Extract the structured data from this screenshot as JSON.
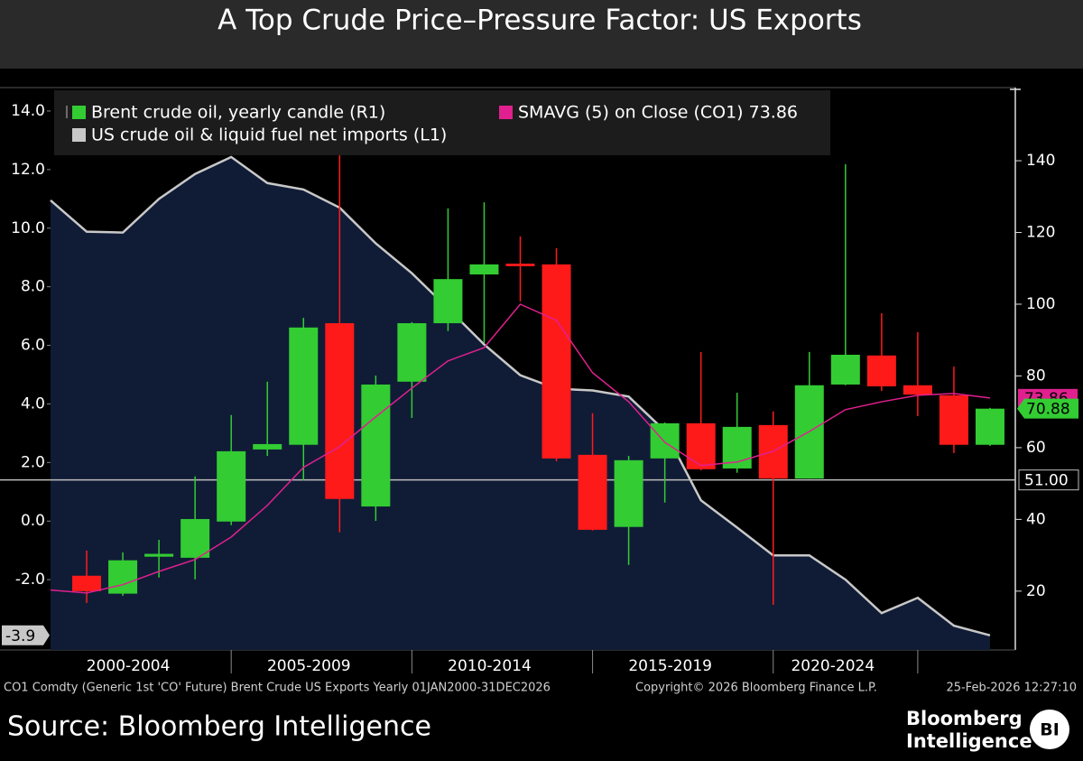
{
  "chart_data": {
    "type": "candlestick",
    "title": "A Top Crude Price–Pressure Factor: US Exports",
    "xlim": [
      2000,
      2026.7
    ],
    "xticks": [
      2005,
      2010,
      2015,
      2020,
      2024
    ],
    "period_labels": [
      "2000-2004",
      "2005-2009",
      "2010-2014",
      "2015-2019",
      "2020-2024"
    ],
    "ylim": [
      -4.4,
      14.8
    ],
    "yticks": [
      {
        "value": -2,
        "label": "-2.0"
      },
      {
        "value": 0,
        "label": "0.0"
      },
      {
        "value": 2,
        "label": "2.0"
      },
      {
        "value": 4,
        "label": "4.0"
      },
      {
        "value": 6,
        "label": "6.0"
      },
      {
        "value": 8,
        "label": "8.0"
      },
      {
        "value": 10,
        "label": "10.0"
      },
      {
        "value": 12,
        "label": "12.0"
      },
      {
        "value": 14,
        "label": "14.0"
      }
    ],
    "y2lim": [
      3.6,
      160.4
    ],
    "y2ticks": [
      20,
      40,
      60,
      80,
      100,
      120,
      140
    ],
    "hline": {
      "value": 51,
      "label": "51.00",
      "axis": "y2",
      "color": "#bdbdbd"
    },
    "grid": false,
    "series": [
      {
        "name": "Brent crude oil, yearly candle (R1)",
        "type": "candlestick",
        "axis": "y2",
        "up_color": "#33cc33",
        "down_color": "#ff1a1a",
        "x": [
          2001,
          2002,
          2003,
          2004,
          2005,
          2006,
          2007,
          2008,
          2009,
          2010,
          2011,
          2012,
          2013,
          2014,
          2015,
          2016,
          2017,
          2018,
          2019,
          2020,
          2021,
          2022,
          2023,
          2024,
          2025,
          2026
        ],
        "open": [
          24.3,
          19.3,
          29.6,
          29.3,
          39.4,
          59.5,
          60.8,
          94.7,
          43.6,
          78.4,
          94.7,
          108.3,
          111.3,
          111.1,
          58.0,
          37.9,
          57.0,
          66.8,
          54.2,
          66.3,
          51.4,
          77.6,
          85.7,
          77.4,
          74.6,
          60.8
        ],
        "high": [
          31.3,
          30.8,
          34.3,
          52.0,
          69.1,
          78.4,
          96.2,
          147.5,
          80.1,
          95.0,
          126.7,
          128.4,
          118.9,
          115.6,
          69.6,
          57.7,
          67.0,
          86.7,
          75.3,
          70.1,
          86.7,
          139.0,
          97.5,
          92.2,
          82.6,
          71.1
        ],
        "low": [
          16.7,
          18.7,
          23.8,
          23.3,
          38.4,
          57.7,
          50.9,
          36.4,
          39.6,
          68.3,
          92.5,
          89.2,
          100.8,
          56.2,
          36.9,
          27.3,
          44.7,
          53.7,
          53.0,
          16.2,
          51.4,
          77.4,
          75.8,
          68.8,
          58.5,
          60.5
        ],
        "close": [
          20.0,
          28.6,
          30.4,
          40.1,
          59.0,
          61.0,
          93.5,
          45.7,
          77.6,
          94.7,
          107.0,
          111.1,
          110.6,
          57.0,
          37.1,
          56.5,
          66.8,
          54.0,
          65.8,
          51.4,
          77.4,
          85.9,
          77.1,
          74.8,
          60.8,
          70.88
        ]
      },
      {
        "name": "SMAVG (5)  on Close (CO1) 73.86",
        "type": "line",
        "axis": "y2",
        "color": "#e0208f",
        "x": [
          2000,
          2001,
          2002,
          2003,
          2004,
          2005,
          2006,
          2007,
          2008,
          2009,
          2010,
          2011,
          2012,
          2013,
          2014,
          2015,
          2016,
          2017,
          2018,
          2019,
          2020,
          2021,
          2022,
          2023,
          2024,
          2025,
          2026
        ],
        "values": [
          20.3,
          19.5,
          21.8,
          25.5,
          28.8,
          35.1,
          43.9,
          54.5,
          60.3,
          68.6,
          76.6,
          84.2,
          87.9,
          100.0,
          95.5,
          80.9,
          72.8,
          61.5,
          55.0,
          56.0,
          59.0,
          64.5,
          70.6,
          72.8,
          74.6,
          75.1,
          73.86
        ]
      },
      {
        "name": "US crude oil & liquid fuel net imports (L1)",
        "type": "area",
        "axis": "y",
        "color": "#c8c8c8",
        "fill": "#101c36",
        "x": [
          2000,
          2001,
          2002,
          2003,
          2004,
          2005,
          2006,
          2007,
          2008,
          2009,
          2010,
          2011,
          2012,
          2013,
          2014,
          2015,
          2016,
          2017,
          2018,
          2019,
          2020,
          2021,
          2022,
          2023,
          2024,
          2025,
          2026
        ],
        "values": [
          10.95,
          9.88,
          9.85,
          11.0,
          11.85,
          12.43,
          11.54,
          11.32,
          10.7,
          9.48,
          8.46,
          7.26,
          6.03,
          4.98,
          4.52,
          4.46,
          4.25,
          3.08,
          0.71,
          -0.22,
          -1.17,
          -1.17,
          -2.0,
          -3.14,
          -2.62,
          -3.57,
          -3.9
        ]
      }
    ]
  },
  "footer": {
    "description": "CO1 Comdty (Generic 1st 'CO' Future) Brent Crude US Exports Yearly 01JAN2000-31DEC2026",
    "copyright": "Copyright© 2026 Bloomberg Finance L.P.",
    "timestamp": "25-Feb-2026 12:27:10",
    "source": "Source: Bloomberg Intelligence",
    "logo_line1": "Bloomberg",
    "logo_line2": "Intelligence",
    "logo_badge": "BI"
  }
}
